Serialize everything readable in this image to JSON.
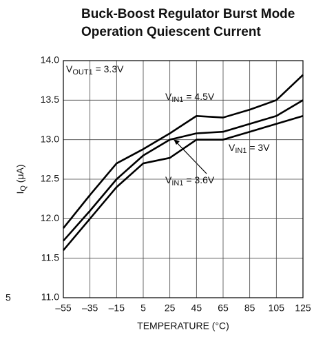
{
  "chart_data": {
    "type": "line",
    "title": [
      "Buck-Boost Regulator Burst Mode",
      "Operation Quiescent Current"
    ],
    "x_label": "TEMPERATURE (°C)",
    "y_label": "IQ (μA)",
    "annotations": [
      "VOUT1 = 3.3V",
      "5"
    ],
    "x": [
      -55,
      -35,
      -15,
      5,
      25,
      45,
      65,
      85,
      105,
      125
    ],
    "series": [
      {
        "name": "VIN1 = 4.5V",
        "color": "#000000",
        "values": [
          11.88,
          12.3,
          12.7,
          12.88,
          13.08,
          13.3,
          13.28,
          13.38,
          13.5,
          13.82
        ]
      },
      {
        "name": "VIN1 = 3.6V",
        "color": "#000000",
        "values": [
          11.72,
          12.1,
          12.5,
          12.8,
          13.0,
          13.08,
          13.1,
          13.2,
          13.3,
          13.5
        ]
      },
      {
        "name": "VIN1 = 3V",
        "color": "#000000",
        "values": [
          11.6,
          12.0,
          12.4,
          12.7,
          12.77,
          13.0,
          13.0,
          13.1,
          13.2,
          13.3
        ]
      }
    ],
    "xlim": [
      -55,
      125
    ],
    "xticks": [
      {
        "value": -55,
        "label": "–55"
      },
      {
        "value": -35,
        "label": "–35"
      },
      {
        "value": -15,
        "label": "–15"
      },
      5,
      25,
      45,
      65,
      85,
      105,
      125
    ],
    "ylim": [
      11,
      14
    ],
    "yticks": [
      {
        "value": 11,
        "label": "11.0"
      },
      11.5,
      {
        "value": 12,
        "label": "12.0"
      },
      12.5,
      {
        "value": 13,
        "label": "13.0"
      },
      13.5,
      {
        "value": 14,
        "label": "14.0"
      }
    ],
    "grid": true
  }
}
